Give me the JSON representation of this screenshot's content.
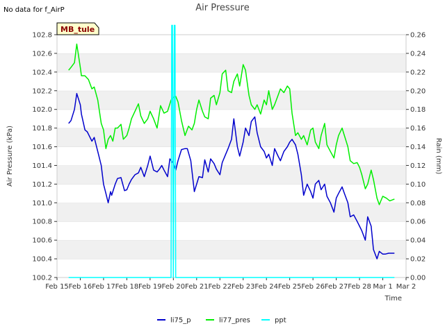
{
  "note": "No data for f_AirP",
  "badge": "MB_tule",
  "chart_data": {
    "type": "line",
    "title": "Air Pressure",
    "xlabel": "Time",
    "ylabel_left": "Air Pressure (kPa)",
    "ylabel_right": "Rain (mm)",
    "x_tick_labels": [
      "Feb 15",
      "Feb 16",
      "Feb 17",
      "Feb 18",
      "Feb 19",
      "Feb 20",
      "Feb 21",
      "Feb 22",
      "Feb 23",
      "Feb 24",
      "Feb 25",
      "Feb 26",
      "Feb 27",
      "Feb 28",
      "Mar 1",
      "Mar 2"
    ],
    "y_left_ticks": [
      "100.2",
      "100.4",
      "100.6",
      "100.8",
      "101.0",
      "101.2",
      "101.4",
      "101.6",
      "101.8",
      "102.0",
      "102.2",
      "102.4",
      "102.6",
      "102.8"
    ],
    "y_right_ticks": [
      "0.00",
      "0.02",
      "0.04",
      "0.06",
      "0.08",
      "0.10",
      "0.12",
      "0.14",
      "0.16",
      "0.18",
      "0.20",
      "0.22",
      "0.24",
      "0.26"
    ],
    "ylim_left": [
      100.2,
      102.8
    ],
    "ylim_right": [
      0.0,
      0.26
    ],
    "xlim": [
      0,
      15
    ],
    "grid": "horizontal bands",
    "legend_position": "bottom-center",
    "series": [
      {
        "name": "li75_p",
        "color": "#0000cc",
        "axis": "left",
        "x": [
          0.5,
          0.6,
          0.75,
          0.85,
          1.0,
          1.05,
          1.2,
          1.3,
          1.5,
          1.6,
          1.75,
          1.9,
          2.0,
          2.1,
          2.2,
          2.3,
          2.35,
          2.5,
          2.6,
          2.75,
          2.9,
          3.0,
          3.1,
          3.2,
          3.35,
          3.5,
          3.6,
          3.75,
          3.9,
          4.0,
          4.15,
          4.3,
          4.4,
          4.5,
          4.6,
          4.75,
          4.85,
          5.0,
          5.1,
          5.2,
          5.35,
          5.5,
          5.6,
          5.75,
          5.9,
          6.0,
          6.1,
          6.25,
          6.35,
          6.5,
          6.6,
          6.75,
          6.85,
          7.0,
          7.1,
          7.25,
          7.35,
          7.5,
          7.6,
          7.75,
          7.85,
          8.0,
          8.1,
          8.25,
          8.35,
          8.5,
          8.6,
          8.75,
          8.9,
          9.0,
          9.1,
          9.25,
          9.35,
          9.5,
          9.6,
          9.75,
          9.9,
          10.0,
          10.1,
          10.25,
          10.35,
          10.5,
          10.6,
          10.75,
          10.9,
          11.0,
          11.1,
          11.25,
          11.35,
          11.5,
          11.6,
          11.75,
          11.9,
          12.0,
          12.1,
          12.25,
          12.35,
          12.5,
          12.6,
          12.75,
          12.9,
          13.0,
          13.1,
          13.25,
          13.35,
          13.5,
          13.6,
          13.75,
          13.85,
          14.0,
          14.1,
          14.25,
          14.35,
          14.5
        ],
        "values": [
          101.85,
          101.88,
          102.0,
          102.17,
          102.05,
          101.95,
          101.78,
          101.76,
          101.66,
          101.7,
          101.55,
          101.4,
          101.2,
          101.1,
          101.0,
          101.12,
          101.08,
          101.2,
          101.26,
          101.27,
          101.13,
          101.14,
          101.2,
          101.25,
          101.3,
          101.32,
          101.38,
          101.28,
          101.4,
          101.5,
          101.35,
          101.33,
          101.36,
          101.4,
          101.35,
          101.28,
          101.47,
          101.42,
          101.35,
          101.45,
          101.57,
          101.58,
          101.58,
          101.45,
          101.12,
          101.2,
          101.28,
          101.27,
          101.46,
          101.33,
          101.47,
          101.42,
          101.36,
          101.3,
          101.43,
          101.52,
          101.58,
          101.68,
          101.9,
          101.6,
          101.5,
          101.65,
          101.8,
          101.72,
          101.87,
          101.92,
          101.75,
          101.6,
          101.55,
          101.48,
          101.52,
          101.4,
          101.58,
          101.5,
          101.45,
          101.55,
          101.6,
          101.65,
          101.68,
          101.62,
          101.52,
          101.3,
          101.08,
          101.2,
          101.12,
          101.05,
          101.2,
          101.24,
          101.14,
          101.2,
          101.07,
          101.0,
          100.9,
          101.05,
          101.1,
          101.17,
          101.1,
          101.0,
          100.85,
          100.87,
          100.8,
          100.75,
          100.7,
          100.6,
          100.85,
          100.75,
          100.5,
          100.4,
          100.48,
          100.45,
          100.45,
          100.46,
          100.46,
          100.46
        ]
      },
      {
        "name": "li77_pres",
        "color": "#00ee00",
        "axis": "left",
        "x": [
          0.5,
          0.6,
          0.75,
          0.85,
          1.0,
          1.05,
          1.2,
          1.35,
          1.5,
          1.6,
          1.75,
          1.9,
          2.0,
          2.1,
          2.2,
          2.3,
          2.4,
          2.5,
          2.6,
          2.75,
          2.85,
          3.0,
          3.1,
          3.2,
          3.35,
          3.5,
          3.6,
          3.75,
          3.9,
          4.0,
          4.15,
          4.3,
          4.45,
          4.6,
          4.75,
          4.9,
          5.0,
          5.1,
          5.2,
          5.35,
          5.5,
          5.65,
          5.8,
          5.9,
          6.0,
          6.1,
          6.25,
          6.35,
          6.5,
          6.6,
          6.75,
          6.85,
          7.0,
          7.1,
          7.25,
          7.35,
          7.5,
          7.6,
          7.75,
          7.85,
          8.0,
          8.1,
          8.25,
          8.35,
          8.5,
          8.6,
          8.75,
          8.9,
          9.0,
          9.1,
          9.25,
          9.35,
          9.5,
          9.6,
          9.75,
          9.9,
          10.0,
          10.1,
          10.25,
          10.35,
          10.5,
          10.6,
          10.75,
          10.9,
          11.0,
          11.1,
          11.25,
          11.35,
          11.5,
          11.6,
          11.75,
          11.9,
          12.0,
          12.1,
          12.25,
          12.35,
          12.5,
          12.6,
          12.75,
          12.9,
          13.0,
          13.1,
          13.25,
          13.35,
          13.5,
          13.6,
          13.75,
          13.85,
          14.0,
          14.15,
          14.3,
          14.5
        ],
        "values": [
          102.42,
          102.45,
          102.5,
          102.7,
          102.45,
          102.36,
          102.36,
          102.32,
          102.22,
          102.24,
          102.1,
          101.85,
          101.78,
          101.58,
          101.68,
          101.72,
          101.66,
          101.8,
          101.8,
          101.84,
          101.68,
          101.72,
          101.8,
          101.9,
          101.98,
          102.06,
          101.93,
          101.85,
          101.9,
          101.98,
          101.9,
          101.8,
          102.04,
          101.96,
          101.98,
          102.1,
          102.13,
          102.14,
          102.08,
          101.88,
          101.72,
          101.82,
          101.78,
          101.85,
          102.0,
          102.1,
          101.98,
          101.92,
          101.9,
          102.12,
          102.15,
          102.05,
          102.18,
          102.38,
          102.42,
          102.2,
          102.18,
          102.3,
          102.38,
          102.25,
          102.48,
          102.42,
          102.15,
          102.05,
          102.0,
          102.05,
          101.95,
          102.1,
          102.05,
          102.2,
          102.0,
          102.05,
          102.15,
          102.22,
          102.18,
          102.25,
          102.22,
          101.96,
          101.72,
          101.75,
          101.68,
          101.72,
          101.62,
          101.78,
          101.8,
          101.65,
          101.58,
          101.72,
          101.85,
          101.62,
          101.55,
          101.48,
          101.62,
          101.72,
          101.8,
          101.72,
          101.6,
          101.45,
          101.42,
          101.43,
          101.38,
          101.3,
          101.15,
          101.2,
          101.35,
          101.25,
          101.05,
          100.98,
          101.07,
          101.05,
          101.02,
          101.04
        ]
      },
      {
        "name": "ppt",
        "color": "#00ffff",
        "axis": "right",
        "x": [
          0.5,
          4.9,
          4.93,
          4.96,
          5.0,
          5.04,
          5.07,
          5.1,
          14.5
        ],
        "values": [
          0.0,
          0.0,
          0.27,
          0.27,
          0.0,
          0.27,
          0.27,
          0.0,
          0.0
        ]
      }
    ]
  }
}
